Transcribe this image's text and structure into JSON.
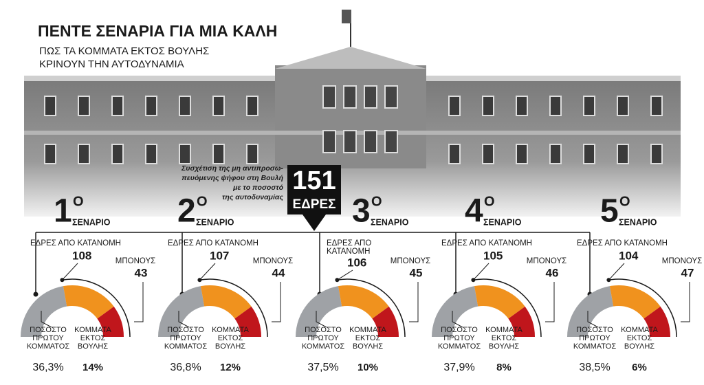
{
  "header": {
    "title": "ΠΕΝΤΕ ΣΕΝΑΡΙΑ ΓΙΑ ΜΙΑ ΚΑΛΗ",
    "subtitle_lines": [
      "ΠΩΣ ΤΑ ΚΟΜΜΑΤΑ ΕΚΤΟΣ ΒΟΥΛΗΣ",
      "ΚΡΙΝΟΥΝ ΤΗΝ ΑΥΤΟΔΥΝΑΜΙΑ"
    ]
  },
  "center": {
    "note_lines": [
      "Συσχέτιση της μη αντιπροσω-",
      "πευόμενης ψήφου στη Βουλή",
      "με το ποσοστό",
      "της αυτοδυναμίας"
    ],
    "badge_number": "151",
    "badge_label": "ΕΔΡΕΣ"
  },
  "scenarios": [
    {
      "number": "1",
      "ordinal": "Ο",
      "label": "ΣΕΝΑΡΙΟ",
      "seats_label": [
        "ΕΔΡΕΣ ΑΠΟ ΚΑΤΑΝΟΜΗ"
      ],
      "seats": "108",
      "bonus_label": "ΜΠΟΝΟΥΣ",
      "bonus": "43",
      "first_label": [
        "ΠΟΣΟΣΤΟ",
        "ΠΡΩΤΟΥ",
        "ΚΟΜΜΑΤΟΣ"
      ],
      "first": "36,3%",
      "out_label": [
        "ΚΟΜΜΑΤΑ",
        "ΕΚΤΟΣ",
        "ΒΟΥΛΗΣ"
      ],
      "out": "14%"
    },
    {
      "number": "2",
      "ordinal": "Ο",
      "label": "ΣΕΝΑΡΙΟ",
      "seats_label": [
        "ΕΔΡΕΣ ΑΠΟ ΚΑΤΑΝΟΜΗ"
      ],
      "seats": "107",
      "bonus_label": "ΜΠΟΝΟΥΣ",
      "bonus": "44",
      "first_label": [
        "ΠΟΣΟΣΤΟ",
        "ΠΡΩΤΟΥ",
        "ΚΟΜΜΑΤΟΣ"
      ],
      "first": "36,8%",
      "out_label": [
        "ΚΟΜΜΑΤΑ",
        "ΕΚΤΟΣ",
        "ΒΟΥΛΗΣ"
      ],
      "out": "12%"
    },
    {
      "number": "3",
      "ordinal": "Ο",
      "label": "ΣΕΝΑΡΙΟ",
      "seats_label": [
        "ΕΔΡΕΣ ΑΠΟ",
        "ΚΑΤΑΝΟΜΗ"
      ],
      "seats": "106",
      "bonus_label": "ΜΠΟΝΟΥΣ",
      "bonus": "45",
      "first_label": [
        "ΠΟΣΟΣΤΟ",
        "ΠΡΩΤΟΥ",
        "ΚΟΜΜΑΤΟΣ"
      ],
      "first": "37,5%",
      "out_label": [
        "ΚΟΜΜΑΤΑ",
        "ΕΚΤΟΣ",
        "ΒΟΥΛΗΣ"
      ],
      "out": "10%"
    },
    {
      "number": "4",
      "ordinal": "Ο",
      "label": "ΣΕΝΑΡΙΟ",
      "seats_label": [
        "ΕΔΡΕΣ ΑΠΟ ΚΑΤΑΝΟΜΗ"
      ],
      "seats": "105",
      "bonus_label": "ΜΠΟΝΟΥΣ",
      "bonus": "46",
      "first_label": [
        "ΠΟΣΟΣΤΟ",
        "ΠΡΩΤΟΥ",
        "ΚΟΜΜΑΤΟΣ"
      ],
      "first": "37,9%",
      "out_label": [
        "ΚΟΜΜΑΤΑ",
        "ΕΚΤΟΣ",
        "ΒΟΥΛΗΣ"
      ],
      "out": "8%"
    },
    {
      "number": "5",
      "ordinal": "Ο",
      "label": "ΣΕΝΑΡΙΟ",
      "seats_label": [
        "ΕΔΡΕΣ ΑΠΟ ΚΑΤΑΝΟΜΗ"
      ],
      "seats": "104",
      "bonus_label": "ΜΠΟΝΟΥΣ",
      "bonus": "47",
      "first_label": [
        "ΠΟΣΟΣΤΟ",
        "ΠΡΩΤΟΥ",
        "ΚΟΜΜΑΤΟΣ"
      ],
      "first": "38,5%",
      "out_label": [
        "ΚΟΜΜΑΤΑ",
        "ΕΚΤΟΣ",
        "ΒΟΥΛΗΣ"
      ],
      "out": "6%"
    }
  ]
}
